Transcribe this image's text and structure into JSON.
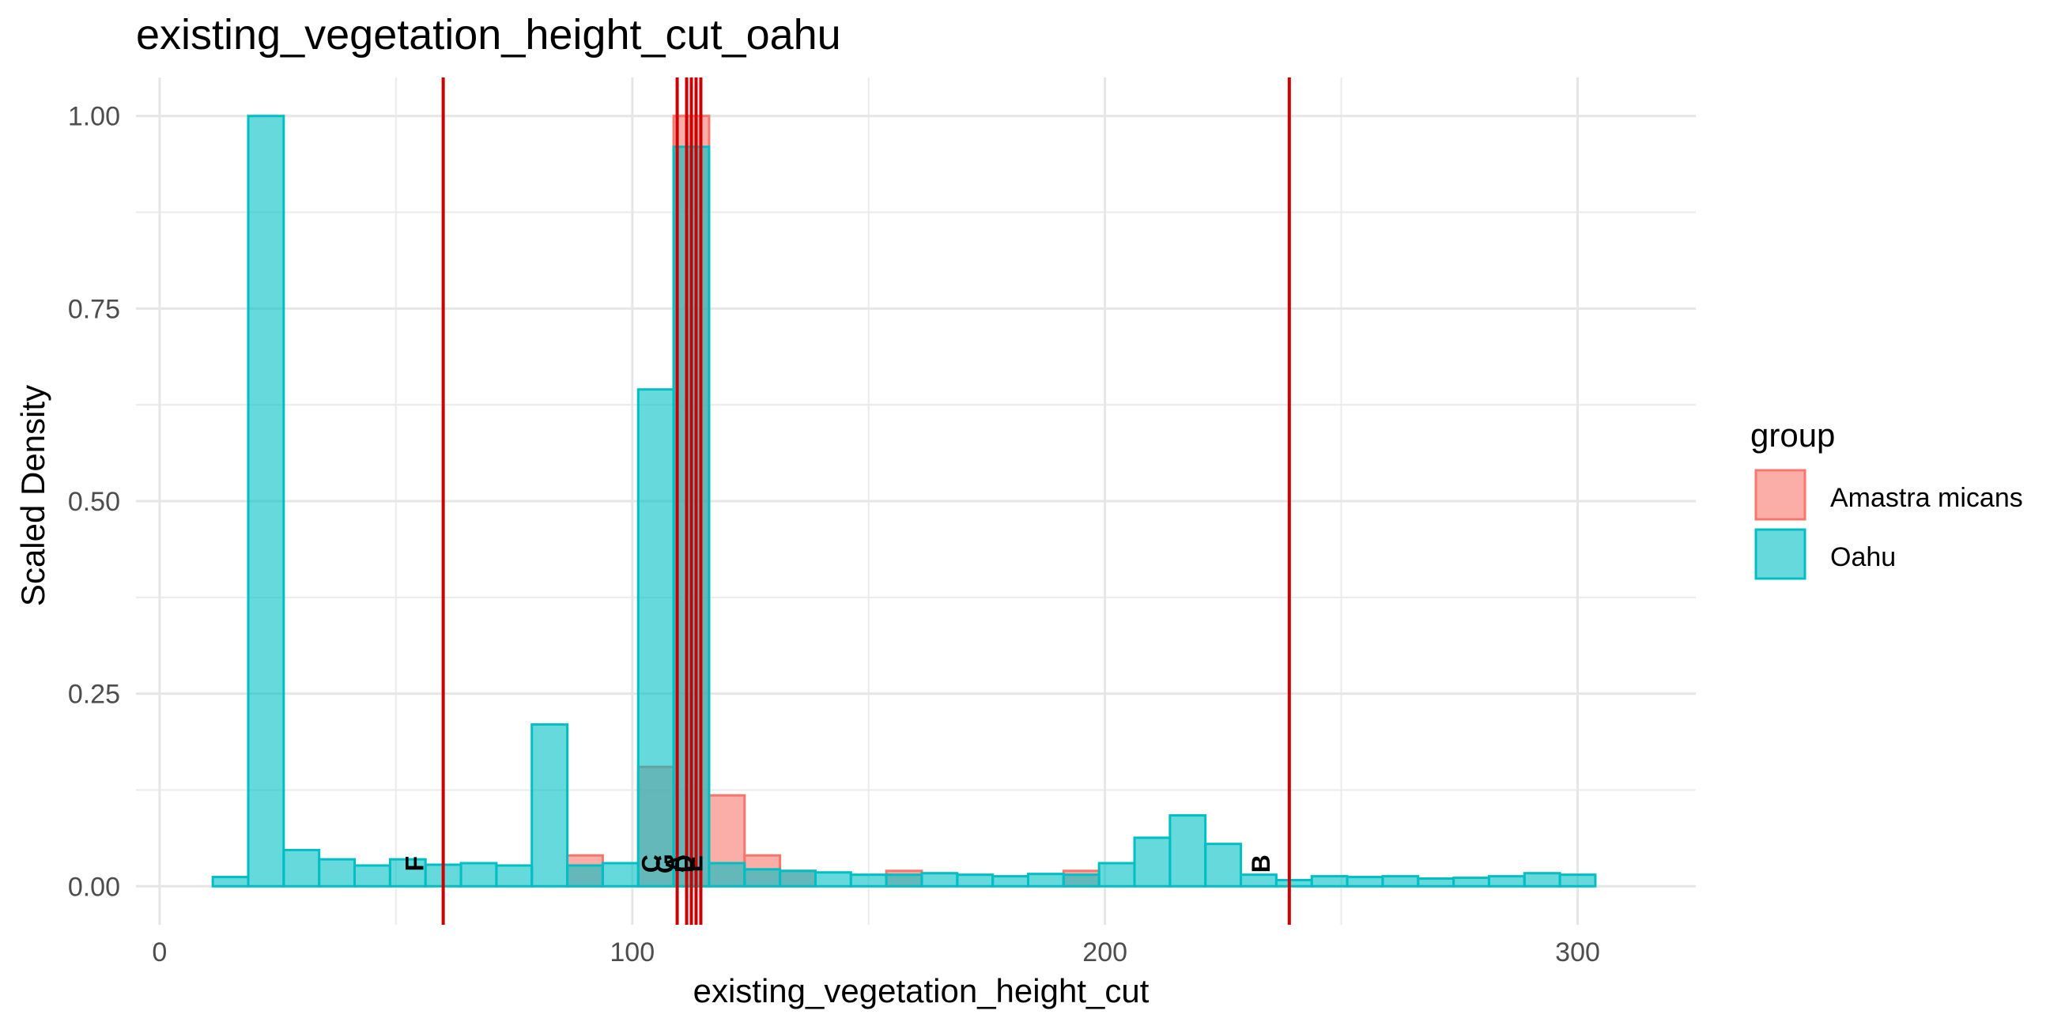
{
  "chart_data": {
    "type": "bar",
    "title": "existing_vegetation_height_cut_oahu",
    "xlabel": "existing_vegetation_height_cut",
    "ylabel": "Scaled Density",
    "xlim": [
      -5,
      325
    ],
    "ylim": [
      -0.05,
      1.05
    ],
    "xticks": [
      0,
      100,
      200,
      300
    ],
    "xtick_labels": [
      "0",
      "100",
      "200",
      "300"
    ],
    "yticks": [
      0,
      0.25,
      0.5,
      0.75,
      1.0
    ],
    "ytick_labels": [
      "0.00",
      "0.25",
      "0.50",
      "0.75",
      "1.00"
    ],
    "bin_width": 7.5,
    "grid": true,
    "legend": {
      "title": "group",
      "placement": "right",
      "entries": [
        {
          "name": "Amastra micans",
          "fill": "#F8766D",
          "stroke": "#F8766D"
        },
        {
          "name": "Oahu",
          "fill": "#00BFC4",
          "stroke": "#00BFC4"
        }
      ]
    },
    "series": [
      {
        "name": "Amastra micans",
        "fill": "#F8766D",
        "stroke": "#F8766D",
        "bin_centers": [
          22.5,
          90,
          105,
          112.5,
          120,
          127.5,
          135,
          157.5,
          195
        ],
        "values": [
          0.0,
          0.04,
          0.155,
          1.0,
          0.118,
          0.04,
          0.02,
          0.02,
          0.02
        ]
      },
      {
        "name": "Oahu",
        "fill": "#00BFC4",
        "stroke": "#00BFC4",
        "bin_centers": [
          15,
          22.5,
          30,
          37.5,
          45,
          52.5,
          60,
          67.5,
          75,
          82.5,
          90,
          97.5,
          105,
          112.5,
          120,
          127.5,
          135,
          142.5,
          150,
          157.5,
          165,
          172.5,
          180,
          187.5,
          195,
          202.5,
          210,
          217.5,
          225,
          232.5,
          240,
          247.5,
          255,
          262.5,
          270,
          277.5,
          285,
          292.5,
          300
        ],
        "values": [
          0.012,
          1.0,
          0.047,
          0.035,
          0.027,
          0.035,
          0.028,
          0.03,
          0.027,
          0.21,
          0.027,
          0.03,
          0.645,
          0.96,
          0.03,
          0.022,
          0.02,
          0.018,
          0.015,
          0.015,
          0.017,
          0.015,
          0.013,
          0.016,
          0.015,
          0.03,
          0.063,
          0.092,
          0.055,
          0.015,
          0.008,
          0.013,
          0.012,
          0.013,
          0.01,
          0.011,
          0.013,
          0.017,
          0.015
        ]
      }
    ],
    "vlines": {
      "color": "#CC0000",
      "x": [
        60,
        109.5,
        111.5,
        112.5,
        113.5,
        114.5,
        239
      ]
    },
    "annotations": [
      {
        "text": "F",
        "x": 54,
        "y": 0.015
      },
      {
        "text": "C",
        "x": 104,
        "y": 0.015
      },
      {
        "text": "G",
        "x": 107,
        "y": 0.015
      },
      {
        "text": "A",
        "x": 109,
        "y": 0.015
      },
      {
        "text": "D",
        "x": 111,
        "y": 0.015
      },
      {
        "text": "E",
        "x": 113,
        "y": 0.015
      },
      {
        "text": "B",
        "x": 233,
        "y": 0.015
      }
    ]
  }
}
